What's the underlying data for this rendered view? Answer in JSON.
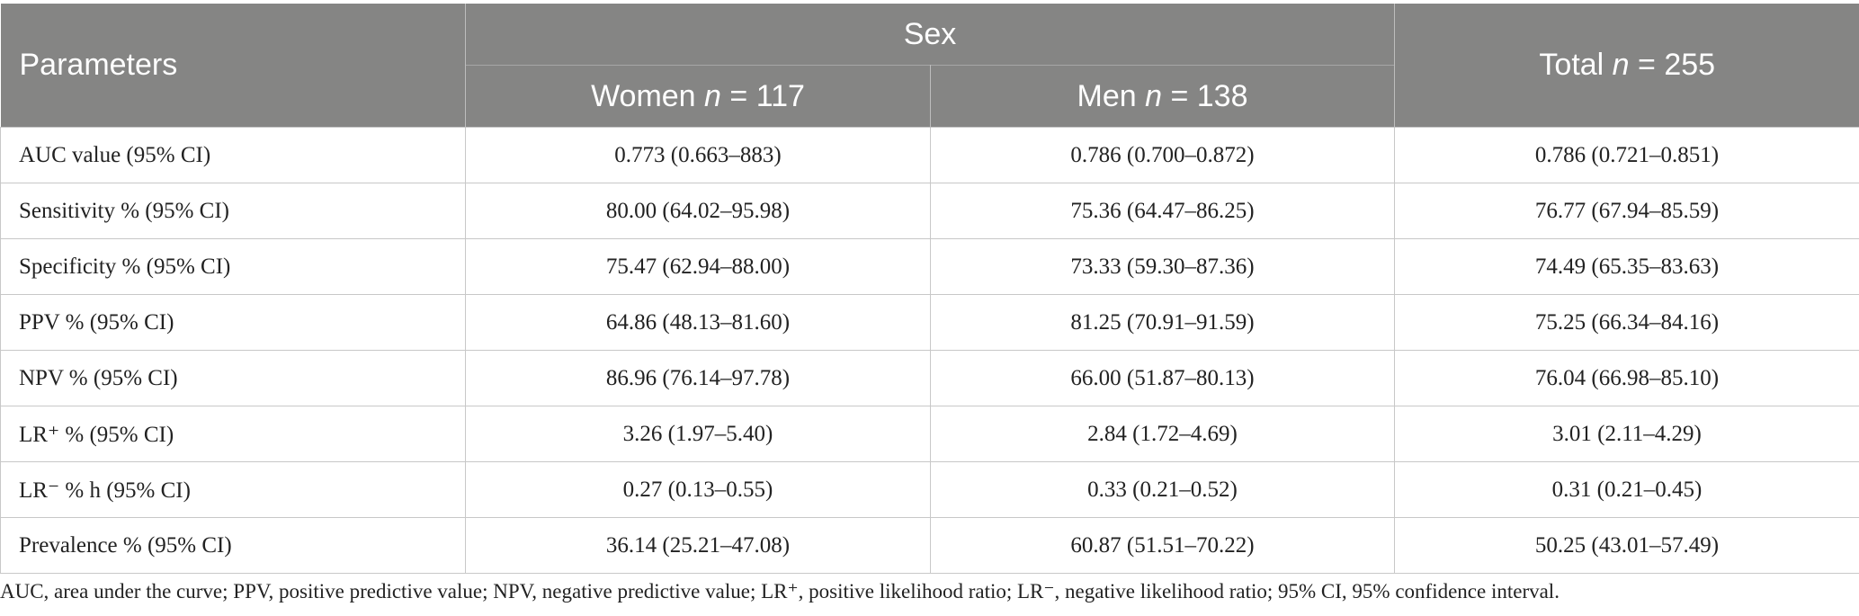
{
  "table": {
    "header": {
      "parameters": "Parameters",
      "group": "Sex",
      "women_label": "Women ",
      "women_n": "n",
      "women_count": " = 117",
      "men_label": "Men ",
      "men_n": "n",
      "men_count": " = 138",
      "total_label": "Total ",
      "total_n": "n",
      "total_count": " = 255"
    },
    "rows": [
      {
        "parameter": "AUC value (95% CI)",
        "women": "0.773 (0.663–883)",
        "men": "0.786 (0.700–0.872)",
        "total": "0.786 (0.721–0.851)"
      },
      {
        "parameter": "Sensitivity % (95% CI)",
        "women": "80.00 (64.02–95.98)",
        "men": "75.36 (64.47–86.25)",
        "total": "76.77 (67.94–85.59)"
      },
      {
        "parameter": "Specificity % (95% CI)",
        "women": "75.47 (62.94–88.00)",
        "men": "73.33 (59.30–87.36)",
        "total": "74.49 (65.35–83.63)"
      },
      {
        "parameter": "PPV % (95% CI)",
        "women": "64.86 (48.13–81.60)",
        "men": "81.25 (70.91–91.59)",
        "total": "75.25 (66.34–84.16)"
      },
      {
        "parameter": "NPV % (95% CI)",
        "women": "86.96 (76.14–97.78)",
        "men": "66.00 (51.87–80.13)",
        "total": "76.04 (66.98–85.10)"
      },
      {
        "parameter": "LR⁺ % (95% CI)",
        "women": "3.26 (1.97–5.40)",
        "men": "2.84 (1.72–4.69)",
        "total": "3.01 (2.11–4.29)"
      },
      {
        "parameter": "LR⁻ % h (95% CI)",
        "women": "0.27 (0.13–0.55)",
        "men": "0.33 (0.21–0.52)",
        "total": "0.31 (0.21–0.45)"
      },
      {
        "parameter": "Prevalence % (95% CI)",
        "women": "36.14 (25.21–47.08)",
        "men": "60.87 (51.51–70.22)",
        "total": "50.25 (43.01–57.49)"
      }
    ]
  },
  "footnote": "AUC, area under the curve; PPV, positive predictive value; NPV, negative predictive value; LR⁺, positive likelihood ratio; LR⁻, negative likelihood ratio; 95% CI, 95% confidence interval."
}
